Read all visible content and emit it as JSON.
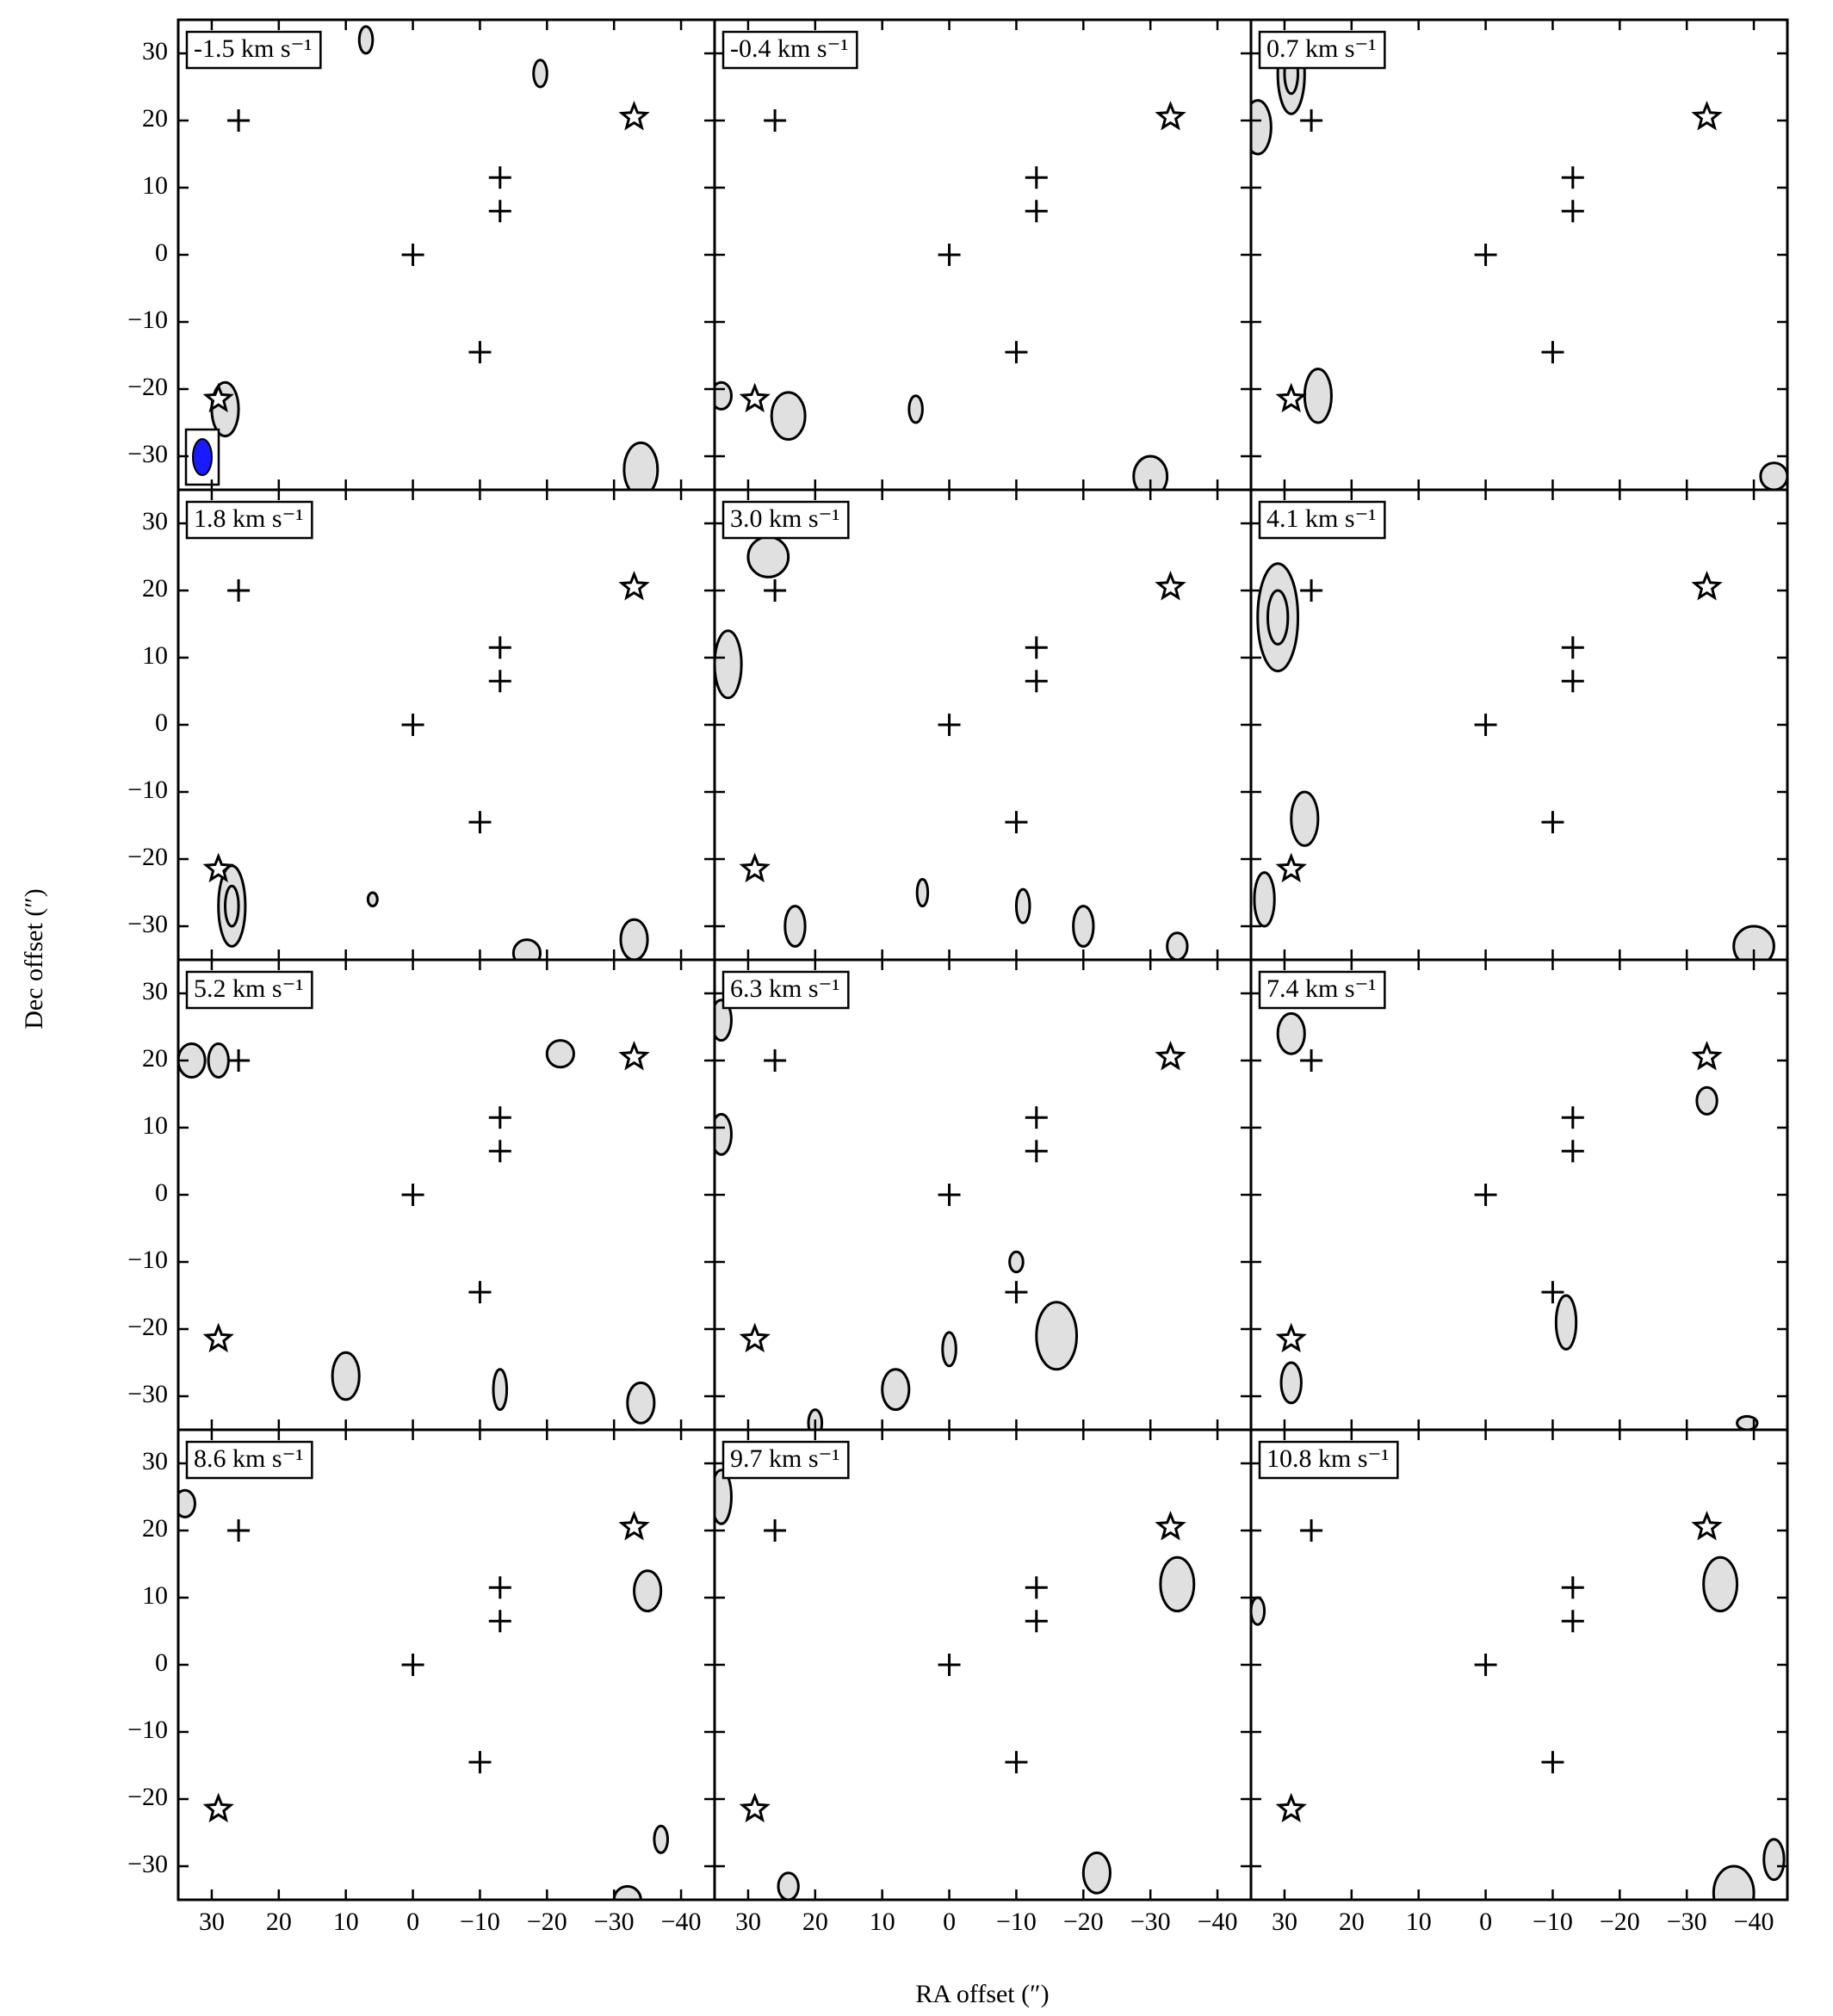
{
  "chart_data": {
    "type": "channel_map",
    "xlabel": "RA offset (″)",
    "ylabel": "Dec offset (″)",
    "xlim": [
      35,
      -45
    ],
    "ylim": [
      -35,
      35
    ],
    "xticks": [
      30,
      20,
      10,
      0,
      {
        "value": -10,
        "label": "−10"
      },
      {
        "value": -20,
        "label": "−20"
      },
      {
        "value": -30,
        "label": "−30"
      },
      {
        "value": -40,
        "label": "−40"
      }
    ],
    "yticks": [
      {
        "value": -30,
        "label": "−30"
      },
      {
        "value": -20,
        "label": "−20"
      },
      {
        "value": -10,
        "label": "−10"
      },
      0,
      10,
      20,
      30
    ],
    "crosses": {
      "x": [
        26,
        -13,
        -13,
        0,
        -10
      ],
      "y": [
        20,
        11.5,
        6.5,
        0,
        -14.5
      ]
    },
    "stars": {
      "x": [
        -33,
        29
      ],
      "y": [
        20.5,
        -21.5
      ]
    },
    "emission_color": "#e0e0e0",
    "panels": [
      {
        "label": "-1.5 km s⁻¹",
        "emission": [
          [
            28,
            -23,
            2,
            4
          ],
          [
            -34,
            -32,
            2.5,
            4
          ],
          [
            -19,
            27,
            1,
            2
          ],
          [
            7,
            32,
            1,
            2
          ]
        ]
      },
      {
        "label": "-0.4 km s⁻¹",
        "emission": [
          [
            24,
            -24,
            2.5,
            3.5
          ],
          [
            -30,
            -33,
            2.5,
            3
          ],
          [
            34,
            -21,
            1.5,
            2
          ],
          [
            5,
            -23,
            1,
            2
          ]
        ]
      },
      {
        "label": "0.7 km s⁻¹",
        "emission": [
          [
            34,
            19,
            2,
            4
          ],
          [
            29,
            27,
            2,
            6
          ],
          [
            25,
            -21,
            2,
            4
          ],
          [
            -43,
            -33,
            2,
            2
          ]
        ]
      },
      {
        "label": "1.8 km s⁻¹",
        "emission": [
          [
            27,
            -27,
            2,
            6
          ],
          [
            -33,
            -32,
            2,
            3
          ],
          [
            -17,
            -34,
            2,
            2
          ],
          [
            6,
            -26,
            0.7,
            1
          ]
        ]
      },
      {
        "label": "3.0 km s⁻¹",
        "emission": [
          [
            27,
            25,
            3,
            3
          ],
          [
            33,
            9,
            2,
            5
          ],
          [
            23,
            -30,
            1.5,
            3
          ],
          [
            -20,
            -30,
            1.5,
            3
          ],
          [
            -34,
            -33,
            1.5,
            2
          ],
          [
            -11,
            -27,
            1,
            2.5
          ],
          [
            4,
            -25,
            0.8,
            2
          ]
        ]
      },
      {
        "label": "4.1 km s⁻¹",
        "emission": [
          [
            31,
            16,
            3,
            8
          ],
          [
            33,
            -26,
            1.5,
            4
          ],
          [
            27,
            -14,
            2,
            4
          ],
          [
            -40,
            -33,
            3,
            3
          ]
        ]
      },
      {
        "label": "5.2 km s⁻¹",
        "emission": [
          [
            -22,
            21,
            2,
            2
          ],
          [
            10,
            -27,
            2,
            3.5
          ],
          [
            -34,
            -31,
            2,
            3
          ],
          [
            -13,
            -29,
            1,
            3
          ],
          [
            33,
            20,
            2,
            2.5
          ],
          [
            29,
            20,
            1.5,
            2.5
          ]
        ]
      },
      {
        "label": "6.3 km s⁻¹",
        "emission": [
          [
            -16,
            -21,
            3,
            5
          ],
          [
            8,
            -29,
            2,
            3
          ],
          [
            34,
            26,
            1.5,
            3
          ],
          [
            34,
            9,
            1.5,
            3
          ],
          [
            -10,
            -10,
            1,
            1.5
          ],
          [
            0,
            -23,
            1,
            2.5
          ],
          [
            20,
            -34,
            1,
            2
          ]
        ]
      },
      {
        "label": "7.4 km s⁻¹",
        "emission": [
          [
            29,
            24,
            2,
            3
          ],
          [
            -33,
            14,
            1.5,
            2
          ],
          [
            -12,
            -19,
            1.5,
            4
          ],
          [
            29,
            -28,
            1.5,
            3
          ],
          [
            -39,
            -34,
            1.5,
            1
          ]
        ]
      },
      {
        "label": "8.6 km s⁻¹",
        "emission": [
          [
            -35,
            11,
            2,
            3
          ],
          [
            -37,
            -26,
            1,
            2
          ],
          [
            -32,
            -35,
            2,
            2
          ],
          [
            34,
            24,
            1.5,
            2
          ]
        ]
      },
      {
        "label": "9.7 km s⁻¹",
        "emission": [
          [
            -34,
            12,
            2.5,
            4
          ],
          [
            -22,
            -31,
            2,
            3
          ],
          [
            34,
            25,
            1.5,
            4
          ],
          [
            24,
            -33,
            1.5,
            2
          ]
        ]
      },
      {
        "label": "10.8 km s⁻¹",
        "emission": [
          [
            -35,
            12,
            2.5,
            4
          ],
          [
            -37,
            -34,
            3,
            4
          ],
          [
            -43,
            -29,
            1.5,
            3
          ],
          [
            34,
            8,
            1,
            2
          ]
        ]
      }
    ]
  }
}
